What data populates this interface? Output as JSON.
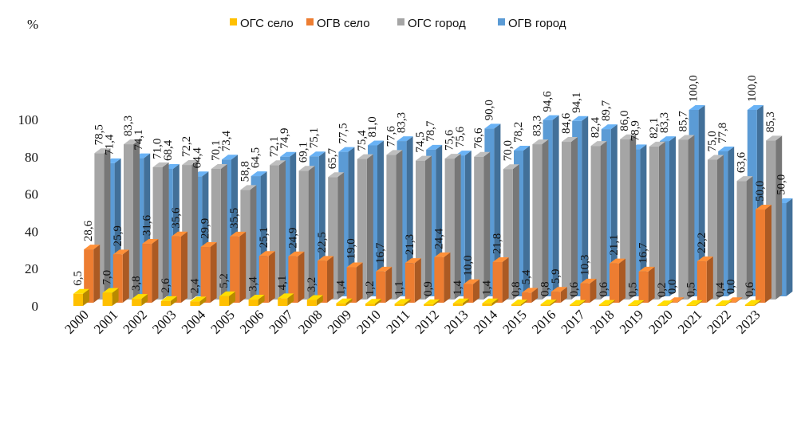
{
  "chart_data": {
    "type": "bar",
    "title": "",
    "ylabel": "%",
    "xlabel": "",
    "ylim": [
      0,
      100
    ],
    "yticks": [
      "0",
      "20",
      "40",
      "60",
      "80",
      "100"
    ],
    "legend_position": "top",
    "categories": [
      "2000",
      "2001",
      "2002",
      "2003",
      "2004",
      "2005",
      "2006",
      "2007",
      "2008",
      "2009",
      "2010",
      "2011",
      "2012",
      "2013",
      "2014",
      "2015",
      "2016",
      "2017",
      "2018",
      "2019",
      "2020",
      "2021",
      "2022",
      "2023"
    ],
    "series": [
      {
        "name": "ОГС село",
        "color": "#FFC000",
        "values": [
          6.5,
          7.0,
          3.8,
          2.6,
          2.4,
          5.2,
          3.4,
          4.1,
          3.2,
          1.4,
          1.2,
          1.1,
          0.9,
          1.4,
          1.4,
          0.8,
          0.8,
          0.6,
          0.6,
          0.5,
          0.2,
          0.5,
          0.4,
          0.6
        ],
        "labels": [
          "6,5",
          "7,0",
          "3,8",
          "2,6",
          "2,4",
          "5,2",
          "3,4",
          "4,1",
          "3,2",
          "1,4",
          "1,2",
          "1,1",
          "0,9",
          "1,4",
          "1,4",
          "0,8",
          "0,8",
          "0,6",
          "0,6",
          "0,5",
          "0,2",
          "0,5",
          "0,4",
          "0,6"
        ]
      },
      {
        "name": "ОГВ село",
        "color": "#ED7D31",
        "values": [
          28.6,
          25.9,
          31.6,
          35.6,
          29.9,
          35.5,
          25.1,
          24.9,
          22.5,
          19.0,
          16.7,
          21.3,
          24.4,
          10.0,
          21.8,
          5.4,
          5.9,
          10.3,
          21.1,
          16.7,
          0.0,
          22.2,
          0.0,
          50.0
        ],
        "labels": [
          "28,6",
          "25,9",
          "31,6",
          "35,6",
          "29,9",
          "35,5",
          "25,1",
          "24,9",
          "22,5",
          "19,0",
          "16,7",
          "21,3",
          "24,4",
          "10,0",
          "21,8",
          "5,4",
          "5,9",
          "10,3",
          "21,1",
          "16,7",
          "0,0",
          "22,2",
          "0,0",
          "50,0"
        ]
      },
      {
        "name": "ОГС город",
        "color": "#A5A5A5",
        "values": [
          78.5,
          83.3,
          71.0,
          72.2,
          70.1,
          58.8,
          72.1,
          69.1,
          65.7,
          75.4,
          77.6,
          74.5,
          75.6,
          76.6,
          70.0,
          83.3,
          84.6,
          82.4,
          86.0,
          82.1,
          85.7,
          75.0,
          63.6,
          85.3
        ],
        "labels": [
          "78,5",
          "83,3",
          "71,0",
          "72,2",
          "70,1",
          "58,8",
          "72,1",
          "69,1",
          "65,7",
          "75,4",
          "77,6",
          "74,5",
          "75,6",
          "76,6",
          "70,0",
          "83,3",
          "84,6",
          "82,4",
          "86,0",
          "82,1",
          "85,7",
          "75,0",
          "63,6",
          "85,3"
        ]
      },
      {
        "name": "ОГВ город",
        "color": "#5B9BD5",
        "values": [
          71.4,
          74.1,
          68.4,
          64.4,
          73.4,
          64.5,
          74.9,
          75.1,
          77.5,
          81.0,
          83.3,
          78.7,
          75.6,
          90.0,
          78.2,
          94.6,
          94.1,
          89.7,
          78.9,
          83.3,
          100.0,
          77.8,
          100.0,
          50.0
        ],
        "labels": [
          "71,4",
          "74,1",
          "68,4",
          "64,4",
          "73,4",
          "64,5",
          "74,9",
          "75,1",
          "77,5",
          "81,0",
          "83,3",
          "78,7",
          "75,6",
          "90,0",
          "78,2",
          "94,6",
          "94,1",
          "89,7",
          "78,9",
          "83,3",
          "100,0",
          "77,8",
          "100,0",
          "50,0"
        ]
      }
    ]
  }
}
